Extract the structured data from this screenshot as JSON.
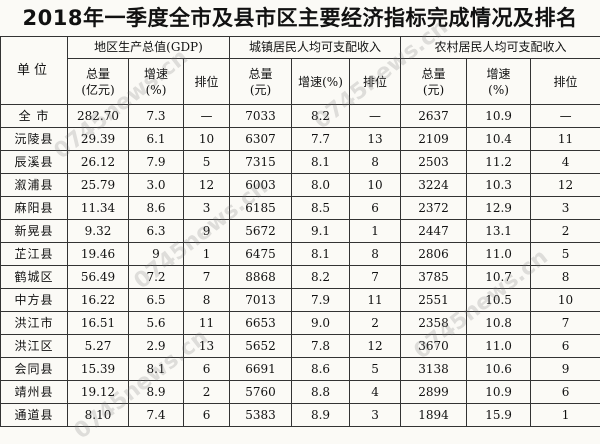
{
  "title": "2018年一季度全市及县市区主要经济指标完成情况及排名",
  "header": {
    "unit": "单位",
    "groups": [
      "地区生产总值(GDP)",
      "城镇居民人均可支配收入",
      "农村居民人均可支配收入"
    ],
    "gdp_total": "总量",
    "gdp_total_unit": "(亿元)",
    "gdp_growth": "增速",
    "gdp_growth_unit": "(%)",
    "gdp_rank": "排位",
    "urban_total": "总量",
    "urban_total_unit": "(元)",
    "urban_growth": "增速(%)",
    "urban_rank": "排位",
    "rural_total": "总量",
    "rural_total_unit": "(元)",
    "rural_growth": "增速",
    "rural_growth_unit": "(%)",
    "rural_rank": "排位"
  },
  "rows": [
    [
      "全 市",
      "282.70",
      "7.3",
      "—",
      "7033",
      "8.2",
      "—",
      "2637",
      "10.9",
      "—"
    ],
    [
      "沅陵县",
      "29.39",
      "6.1",
      "10",
      "6307",
      "7.7",
      "13",
      "2109",
      "10.4",
      "11"
    ],
    [
      "辰溪县",
      "26.12",
      "7.9",
      "5",
      "7315",
      "8.1",
      "8",
      "2503",
      "11.2",
      "4"
    ],
    [
      "溆浦县",
      "25.79",
      "3.0",
      "12",
      "6003",
      "8.0",
      "10",
      "3224",
      "10.3",
      "12"
    ],
    [
      "麻阳县",
      "11.34",
      "8.6",
      "3",
      "6185",
      "8.5",
      "6",
      "2372",
      "12.9",
      "3"
    ],
    [
      "新晃县",
      "9.32",
      "6.3",
      "9",
      "5672",
      "9.1",
      "1",
      "2447",
      "13.1",
      "2"
    ],
    [
      "芷江县",
      "19.46",
      "9",
      "1",
      "6475",
      "8.1",
      "8",
      "2806",
      "11.0",
      "5"
    ],
    [
      "鹤城区",
      "56.49",
      "7.2",
      "7",
      "8868",
      "8.2",
      "7",
      "3785",
      "10.7",
      "8"
    ],
    [
      "中方县",
      "16.22",
      "6.5",
      "8",
      "7013",
      "7.9",
      "11",
      "2551",
      "10.5",
      "10"
    ],
    [
      "洪江市",
      "16.51",
      "5.6",
      "11",
      "6653",
      "9.0",
      "2",
      "2358",
      "10.8",
      "7"
    ],
    [
      "洪江区",
      "5.27",
      "2.9",
      "13",
      "5652",
      "7.8",
      "12",
      "3670",
      "11.0",
      "6"
    ],
    [
      "会同县",
      "15.39",
      "8.1",
      "6",
      "6691",
      "8.6",
      "5",
      "3138",
      "10.6",
      "9"
    ],
    [
      "靖州县",
      "19.12",
      "8.9",
      "2",
      "5760",
      "8.8",
      "4",
      "2899",
      "10.9",
      "6"
    ],
    [
      "通道县",
      "8.10",
      "7.4",
      "6",
      "5383",
      "8.9",
      "3",
      "1894",
      "15.9",
      "1"
    ]
  ],
  "watermark": "0745news.cn"
}
